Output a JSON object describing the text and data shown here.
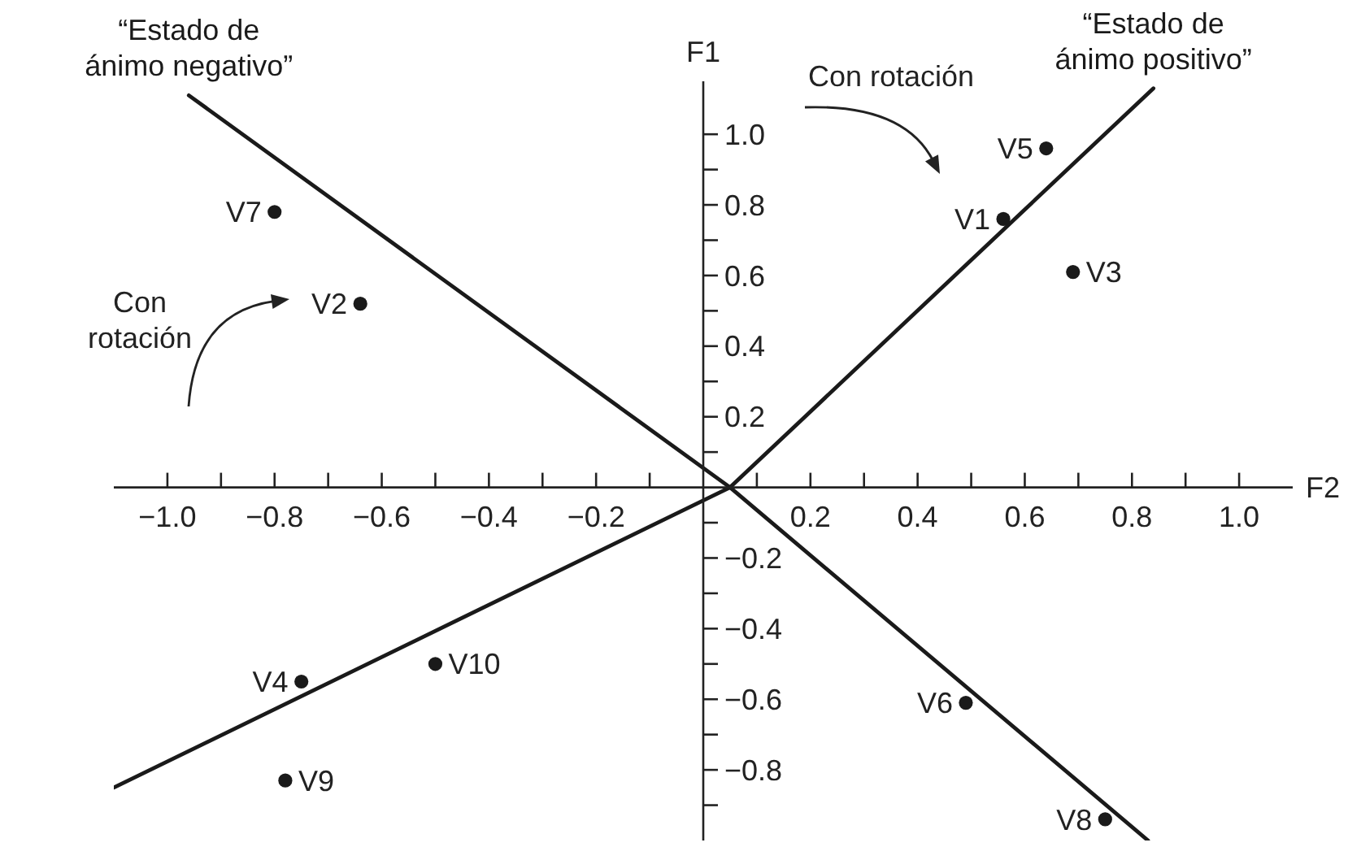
{
  "chart_data": {
    "type": "scatter",
    "xlabel": "F2",
    "ylabel": "F1",
    "xlim": [
      -1.1,
      1.1
    ],
    "ylim": [
      -1.0,
      1.15
    ],
    "xticks": [
      {
        "value": -1,
        "label": "−1.0"
      },
      {
        "value": -0.9,
        "label": null
      },
      {
        "value": -0.8,
        "label": "−0.8"
      },
      {
        "value": -0.7,
        "label": null
      },
      {
        "value": -0.6,
        "label": "−0.6"
      },
      {
        "value": -0.5,
        "label": null
      },
      {
        "value": -0.4,
        "label": "−0.4"
      },
      {
        "value": -0.3,
        "label": null
      },
      {
        "value": -0.2,
        "label": "−0.2"
      },
      {
        "value": -0.1,
        "label": null
      },
      {
        "value": 0.1,
        "label": null
      },
      0.2,
      {
        "value": 0.3,
        "label": null
      },
      0.4,
      {
        "value": 0.5,
        "label": null
      },
      0.6,
      {
        "value": 0.7,
        "label": null
      },
      0.8,
      {
        "value": 0.9,
        "label": null
      },
      {
        "value": 1,
        "label": "1.0"
      }
    ],
    "yticks": [
      {
        "value": -0.9,
        "label": null
      },
      {
        "value": -0.8,
        "label": "−0.8"
      },
      {
        "value": -0.7,
        "label": null
      },
      {
        "value": -0.6,
        "label": "−0.6"
      },
      {
        "value": -0.5,
        "label": null
      },
      {
        "value": -0.4,
        "label": "−0.4"
      },
      {
        "value": -0.3,
        "label": null
      },
      {
        "value": -0.2,
        "label": "−0.2"
      },
      {
        "value": -0.1,
        "label": null
      },
      {
        "value": 0.1,
        "label": null
      },
      0.2,
      {
        "value": 0.3,
        "label": null
      },
      0.4,
      {
        "value": 0.5,
        "label": null
      },
      0.6,
      {
        "value": 0.7,
        "label": null
      },
      0.8,
      {
        "value": 0.9,
        "label": null
      },
      {
        "value": 1,
        "label": "1.0"
      }
    ],
    "series": [
      {
        "type": "scatter",
        "color": "#1a1a1a",
        "marker": "circle",
        "x": [
          0.56,
          -0.64,
          0.69,
          -0.75,
          0.64,
          0.49,
          -0.8,
          0.75,
          -0.78,
          -0.5
        ],
        "values": [
          0.76,
          0.52,
          0.61,
          -0.55,
          0.96,
          -0.61,
          0.78,
          -0.94,
          -0.83,
          -0.5
        ]
      },
      {
        "type": "line",
        "name": "“Estado de ánimo negativo”",
        "color": "#1a1a1a",
        "line_style": "solid",
        "x": [
          -0.96,
          0.05,
          0.83
        ],
        "values": [
          1.11,
          0,
          -1.0
        ]
      },
      {
        "type": "line",
        "name": "“Estado de ánimo positivo”",
        "color": "#1a1a1a",
        "line_style": "solid",
        "x": [
          -1.1,
          0.05,
          0.84
        ],
        "values": [
          -0.85,
          0,
          1.13
        ]
      }
    ],
    "annotations": [
      {
        "text": "V1",
        "x": 0.56,
        "y": 0.76
      },
      {
        "text": "V2",
        "x": -0.64,
        "y": 0.52
      },
      {
        "text": "V3",
        "x": 0.69,
        "y": 0.61
      },
      {
        "text": "V4",
        "x": -0.75,
        "y": -0.55
      },
      {
        "text": "V5",
        "x": 0.64,
        "y": 0.96
      },
      {
        "text": "V6",
        "x": 0.49,
        "y": -0.61
      },
      {
        "text": "V7",
        "x": -0.8,
        "y": 0.78
      },
      {
        "text": "V8",
        "x": 0.75,
        "y": -0.94
      },
      {
        "text": "V9",
        "x": -0.78,
        "y": -0.83
      },
      {
        "text": "V10",
        "x": -0.5,
        "y": -0.5
      },
      "Con rotación",
      "Con rotación"
    ]
  }
}
